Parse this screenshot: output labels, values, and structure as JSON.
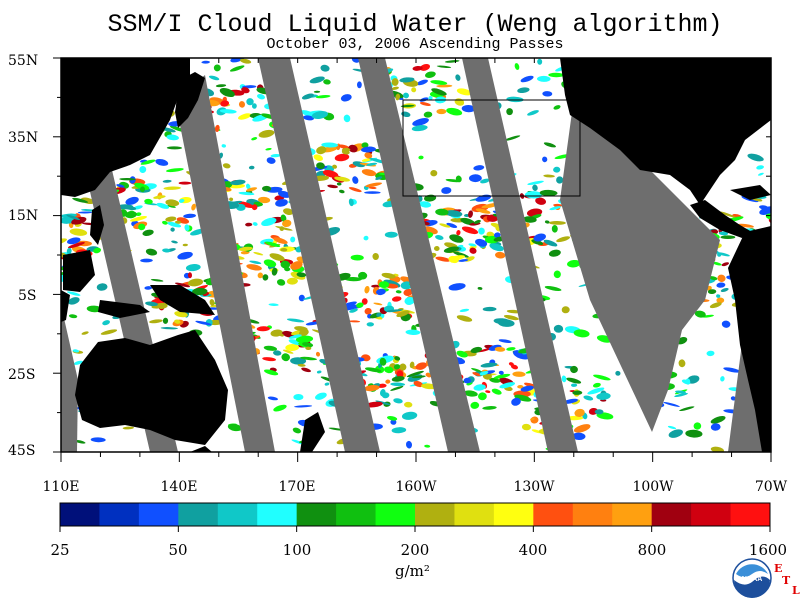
{
  "title": "SSM/I Cloud Liquid Water (Weng algorithm)",
  "subtitle": "October 03, 2006  Ascending Passes",
  "latitude_labels": [
    "55N",
    "35N",
    "15N",
    "5S",
    "25S",
    "45S"
  ],
  "longitude_labels": [
    "110E",
    "140E",
    "170E",
    "160W",
    "130W",
    "100W",
    "70W"
  ],
  "colorbar": {
    "tick_labels": [
      "25",
      "50",
      "100",
      "200",
      "400",
      "800",
      "1600"
    ],
    "units": "g/m²",
    "colors": [
      "#00107a",
      "#0030c0",
      "#1050ff",
      "#10a0a0",
      "#10c8c8",
      "#20ffff",
      "#109010",
      "#10c010",
      "#10ff10",
      "#b0b010",
      "#e0e010",
      "#ffff10",
      "#ff5010",
      "#ff8010",
      "#ffa010",
      "#a00010",
      "#d00010",
      "#ff1010"
    ]
  },
  "logo": {
    "text": "NOAA",
    "lab_mark": "ETL"
  },
  "colors": {
    "land": "#000000",
    "no_data": "#6e6e6e",
    "clear": "#ffffff"
  }
}
